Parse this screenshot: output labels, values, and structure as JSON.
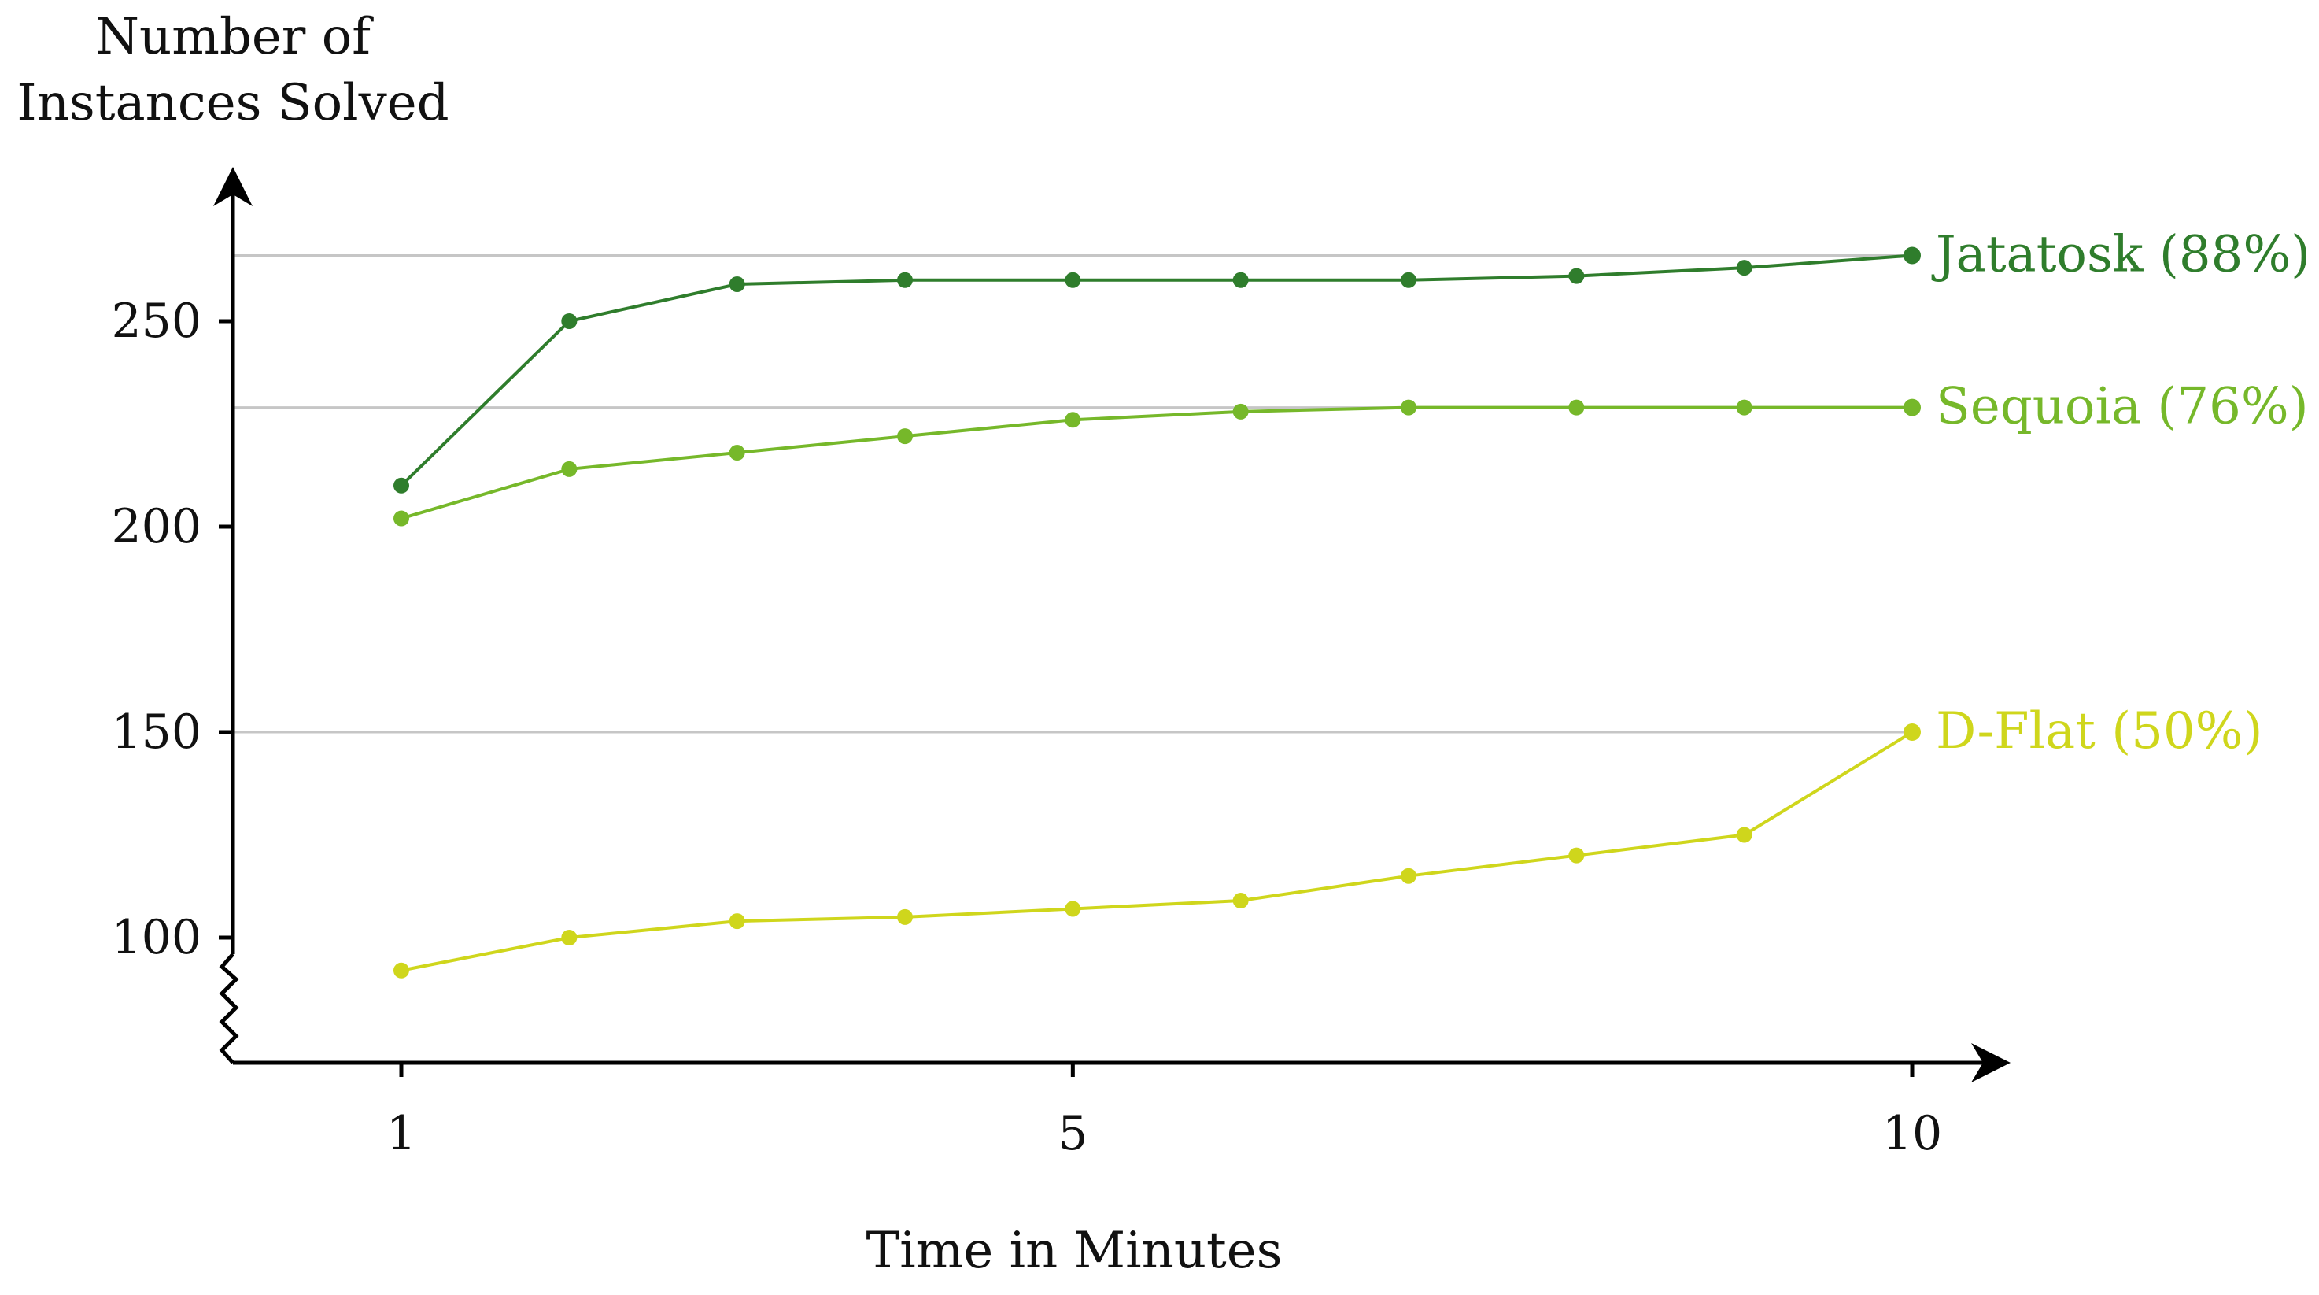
{
  "chart_data": {
    "type": "line",
    "ylabel": [
      "Number of",
      "Instances Solved"
    ],
    "xlabel": "Time in Minutes",
    "x": [
      1,
      2,
      3,
      4,
      5,
      6,
      7,
      8,
      9,
      10
    ],
    "x_ticks": [
      "1",
      "5",
      "10"
    ],
    "x_tick_values": [
      1,
      5,
      10
    ],
    "y_ticks": [
      "100",
      "150",
      "200",
      "250"
    ],
    "y_tick_values": [
      100,
      150,
      200,
      250
    ],
    "xlim": [
      0,
      10.5
    ],
    "ylim": [
      70,
      290
    ],
    "axis_break": "y",
    "grid": "horizontal",
    "gridlines": [
      266,
      229,
      150
    ],
    "series": [
      {
        "name": "Jatatosk (88%)",
        "color": "#2f7d2c",
        "values": [
          210,
          250,
          259,
          260,
          260,
          260,
          260,
          261,
          263,
          266
        ]
      },
      {
        "name": "Sequoia (76%)",
        "color": "#76b82a",
        "values": [
          202,
          214,
          218,
          222,
          226,
          228,
          229,
          229,
          229,
          229
        ]
      },
      {
        "name": "D-Flat (50%)",
        "color": "#cfd61c",
        "values": [
          92,
          100,
          104,
          105,
          107,
          109,
          115,
          120,
          125,
          150
        ]
      }
    ]
  }
}
